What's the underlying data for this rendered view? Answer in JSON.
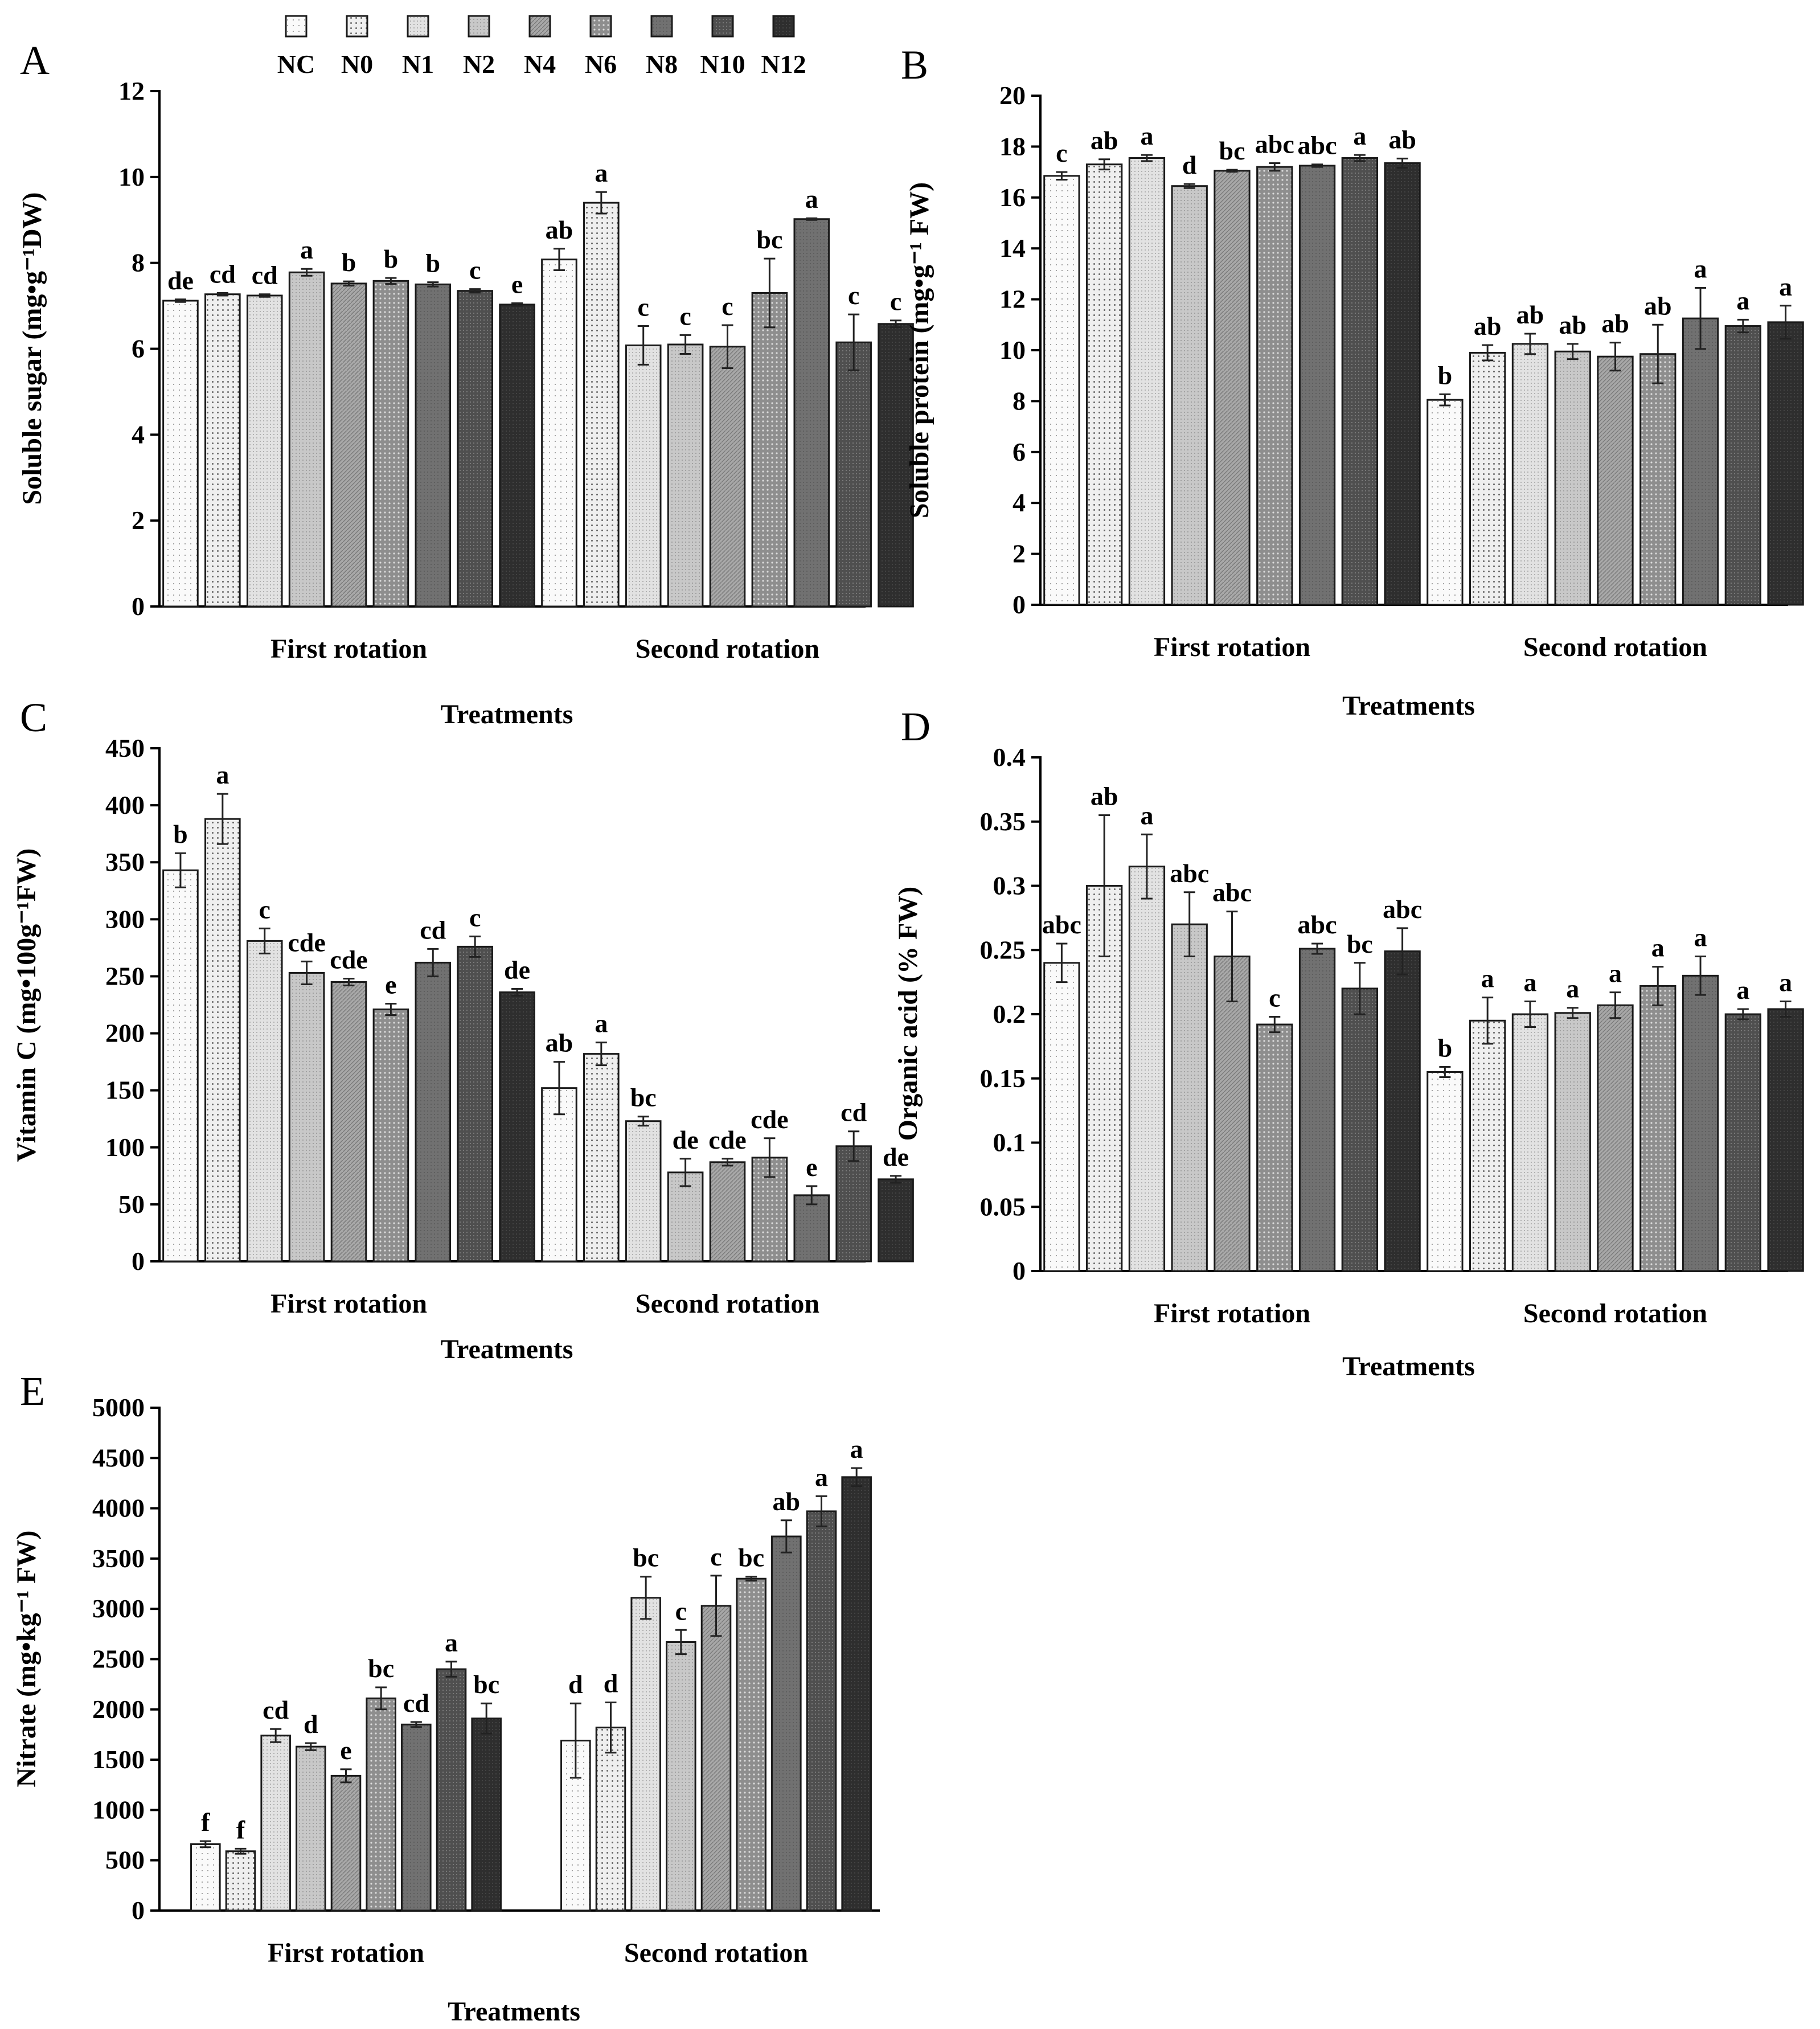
{
  "legend": {
    "treatments": [
      "NC",
      "N0",
      "N1",
      "N2",
      "N4",
      "N6",
      "N8",
      "N10",
      "N12"
    ],
    "fills": [
      "#fafafa",
      "#eeeeee",
      "#e3e3e3",
      "#c6c6c6",
      "#a8a8a8",
      "#8d8d8d",
      "#707070",
      "#4e4e4e",
      "#2d2d2d"
    ]
  },
  "chart_data": [
    {
      "id": "A",
      "panel_letter": "A",
      "type": "bar",
      "ylabel": "Soluble sugar (mg•g⁻¹DW)",
      "xlabel": "Treatments",
      "ylim": [
        0,
        12
      ],
      "yticks": [
        0,
        2,
        4,
        6,
        8,
        10,
        12
      ],
      "ytick_labels": [
        "0",
        "2",
        "4",
        "6",
        "8",
        "10",
        "12"
      ],
      "groups": [
        {
          "name": "First rotation",
          "values": [
            7.12,
            7.27,
            7.24,
            7.78,
            7.52,
            7.58,
            7.5,
            7.35,
            7.03
          ],
          "errors": [
            0.03,
            0.03,
            0.03,
            0.08,
            0.05,
            0.07,
            0.05,
            0.04,
            0.03
          ],
          "labels": [
            "de",
            "cd",
            "cd",
            "a",
            "b",
            "b",
            "b",
            "c",
            "e"
          ]
        },
        {
          "name": "Second rotation",
          "values": [
            8.08,
            9.4,
            6.08,
            6.1,
            6.05,
            7.3,
            9.02,
            6.15,
            6.58
          ],
          "errors": [
            0.25,
            0.25,
            0.45,
            0.22,
            0.5,
            0.8,
            0.02,
            0.65,
            0.08
          ],
          "labels": [
            "ab",
            "a",
            "c",
            "c",
            "c",
            "bc",
            "a",
            "c",
            "c"
          ]
        }
      ]
    },
    {
      "id": "B",
      "panel_letter": "B",
      "type": "bar",
      "ylabel": "Soluble protein (mg•g⁻¹ FW)",
      "xlabel": "Treatments",
      "ylim": [
        0,
        20
      ],
      "yticks": [
        0,
        2,
        4,
        6,
        8,
        10,
        12,
        14,
        16,
        18,
        20
      ],
      "ytick_labels": [
        "0",
        "2",
        "4",
        "6",
        "8",
        "10",
        "12",
        "14",
        "16",
        "18",
        "20"
      ],
      "groups": [
        {
          "name": "First rotation",
          "values": [
            16.85,
            17.3,
            17.55,
            16.45,
            17.05,
            17.2,
            17.25,
            17.55,
            17.35
          ],
          "errors": [
            0.15,
            0.2,
            0.12,
            0.08,
            0.04,
            0.15,
            0.05,
            0.12,
            0.18
          ],
          "labels": [
            "c",
            "ab",
            "a",
            "d",
            "bc",
            "abc",
            "abc",
            "a",
            "ab"
          ]
        },
        {
          "name": "Second rotation",
          "values": [
            8.05,
            9.9,
            10.25,
            9.95,
            9.75,
            9.85,
            11.25,
            10.95,
            11.1
          ],
          "errors": [
            0.22,
            0.3,
            0.4,
            0.3,
            0.55,
            1.15,
            1.2,
            0.25,
            0.65
          ],
          "labels": [
            "b",
            "ab",
            "ab",
            "ab",
            "ab",
            "ab",
            "a",
            "a",
            "a"
          ]
        }
      ]
    },
    {
      "id": "C",
      "panel_letter": "C",
      "type": "bar",
      "ylabel": "Vitamin C (mg•100g⁻¹FW)",
      "xlabel": "Treatments",
      "ylim": [
        0,
        450
      ],
      "yticks": [
        0,
        50,
        100,
        150,
        200,
        250,
        300,
        350,
        400,
        450
      ],
      "ytick_labels": [
        "0",
        "50",
        "100",
        "150",
        "200",
        "250",
        "300",
        "350",
        "400",
        "450"
      ],
      "groups": [
        {
          "name": "First rotation",
          "values": [
            343,
            388,
            281,
            253,
            245,
            221,
            262,
            276,
            236
          ],
          "errors": [
            15,
            22,
            11,
            10,
            3,
            5,
            12,
            9,
            3
          ],
          "labels": [
            "b",
            "a",
            "c",
            "cde",
            "cde",
            "e",
            "cd",
            "c",
            "de"
          ]
        },
        {
          "name": "Second rotation",
          "values": [
            152,
            182,
            123,
            78,
            87,
            91,
            58,
            101,
            72
          ],
          "errors": [
            23,
            10,
            4,
            12,
            3,
            17,
            8,
            13,
            3
          ],
          "labels": [
            "ab",
            "a",
            "bc",
            "de",
            "cde",
            "cde",
            "e",
            "cd",
            "de"
          ]
        }
      ]
    },
    {
      "id": "D",
      "panel_letter": "D",
      "type": "bar",
      "ylabel": "Organic acid (% FW)",
      "xlabel": "Treatments",
      "ylim": [
        0,
        0.4
      ],
      "yticks": [
        0,
        0.05,
        0.1,
        0.15,
        0.2,
        0.25,
        0.3,
        0.35,
        0.4
      ],
      "ytick_labels": [
        "0",
        "0.05",
        "0.1",
        "0.15",
        "0.2",
        "0.25",
        "0.3",
        "0.35",
        "0.4"
      ],
      "groups": [
        {
          "name": "First rotation",
          "values": [
            0.24,
            0.3,
            0.315,
            0.27,
            0.245,
            0.192,
            0.251,
            0.22,
            0.249
          ],
          "errors": [
            0.015,
            0.055,
            0.025,
            0.025,
            0.035,
            0.006,
            0.004,
            0.02,
            0.018
          ],
          "labels": [
            "abc",
            "ab",
            "a",
            "abc",
            "abc",
            "c",
            "abc",
            "bc",
            "abc"
          ]
        },
        {
          "name": "Second rotation",
          "values": [
            0.155,
            0.195,
            0.2,
            0.201,
            0.207,
            0.222,
            0.23,
            0.2,
            0.204
          ],
          "errors": [
            0.004,
            0.018,
            0.01,
            0.004,
            0.01,
            0.015,
            0.015,
            0.004,
            0.006
          ],
          "labels": [
            "b",
            "a",
            "a",
            "a",
            "a",
            "a",
            "a",
            "a",
            "a"
          ]
        }
      ]
    },
    {
      "id": "E",
      "panel_letter": "E",
      "type": "bar",
      "ylabel": "Nitrate (mg•kg⁻¹ FW)",
      "xlabel": "Treatments",
      "ylim": [
        0,
        5000
      ],
      "yticks": [
        0,
        500,
        1000,
        1500,
        2000,
        2500,
        3000,
        3500,
        4000,
        4500,
        5000
      ],
      "ytick_labels": [
        "0",
        "500",
        "1000",
        "1500",
        "2000",
        "2500",
        "3000",
        "3500",
        "4000",
        "4500",
        "5000"
      ],
      "groups": [
        {
          "name": "First rotation",
          "values": [
            660,
            590,
            1740,
            1630,
            1340,
            2110,
            1850,
            2400,
            1910
          ],
          "errors": [
            30,
            25,
            65,
            35,
            65,
            110,
            25,
            75,
            150
          ],
          "labels": [
            "f",
            "f",
            "cd",
            "d",
            "e",
            "bc",
            "cd",
            "a",
            "bc"
          ]
        },
        {
          "name": "Second rotation",
          "values": [
            1690,
            1820,
            3110,
            2670,
            3030,
            3300,
            3720,
            3970,
            4310
          ],
          "errors": [
            370,
            250,
            210,
            120,
            300,
            20,
            160,
            150,
            90
          ],
          "labels": [
            "d",
            "d",
            "bc",
            "c",
            "c",
            "bc",
            "ab",
            "a",
            "a"
          ]
        }
      ]
    }
  ]
}
